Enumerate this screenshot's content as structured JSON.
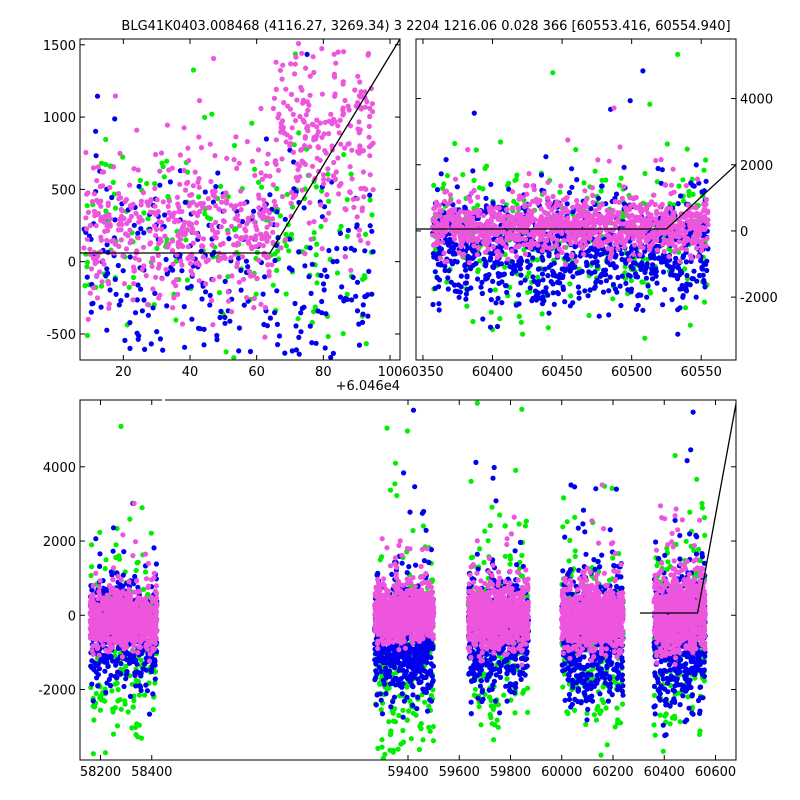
{
  "title": "BLG41K0403.008468 (4116.27, 3269.34)    3 2204 1216.06 0.028 366 [60553.416, 60554.940]",
  "colors": {
    "green": "#00ee00",
    "blue": "#0000ee",
    "pink": "#ee55dd",
    "line": "#000000"
  },
  "chart_data": [
    {
      "type": "scatter",
      "panel": "top-left",
      "x_offset_label": "+6.046e4",
      "xlim": [
        7,
        103
      ],
      "ylim": [
        -680,
        1540
      ],
      "x_ticks": [
        "20",
        "40",
        "60",
        "80",
        "100"
      ],
      "y_ticks": [
        "-500",
        "0",
        "500",
        "1000",
        "1500"
      ],
      "model_line": [
        [
          7,
          60
        ],
        [
          64,
          60
        ],
        [
          103,
          1540
        ]
      ],
      "series": [
        {
          "color": "green",
          "clusters": [
            {
              "x0": 8,
              "x1": 95,
              "mean": 180,
              "sd": 330,
              "n": 200
            }
          ]
        },
        {
          "color": "blue",
          "clusters": [
            {
              "x0": 8,
              "x1": 95,
              "mean": -150,
              "sd": 380,
              "n": 300
            }
          ]
        },
        {
          "color": "pink",
          "clusters": [
            {
              "x0": 8,
              "x1": 65,
              "mean": 200,
              "sd": 260,
              "n": 450
            },
            {
              "x0": 65,
              "x1": 95,
              "mean": 850,
              "sd": 350,
              "n": 250
            }
          ]
        }
      ]
    },
    {
      "type": "scatter",
      "panel": "top-right",
      "xlim": [
        60345,
        60575
      ],
      "ylim": [
        -3900,
        5800
      ],
      "x_ticks": [
        "60350",
        "60400",
        "60450",
        "60500",
        "60550"
      ],
      "y_ticks": [
        "-2000",
        "0",
        "2000",
        "4000"
      ],
      "model_line": [
        [
          60345,
          60
        ],
        [
          60525,
          60
        ],
        [
          60575,
          2000
        ]
      ],
      "series": [
        {
          "color": "green",
          "clusters": [
            {
              "x0": 60357,
              "x1": 60555,
              "mean": -300,
              "sd": 1100,
              "n": 350
            }
          ]
        },
        {
          "color": "blue",
          "clusters": [
            {
              "x0": 60357,
              "x1": 60555,
              "mean": -650,
              "sd": 800,
              "n": 900
            }
          ]
        },
        {
          "color": "pink",
          "clusters": [
            {
              "x0": 60357,
              "x1": 60555,
              "mean": 100,
              "sd": 400,
              "n": 1100
            }
          ]
        }
      ]
    },
    {
      "type": "scatter",
      "panel": "bottom",
      "xlim": [
        58120,
        60680
      ],
      "ylim": [
        -3900,
        5800
      ],
      "x_ticks": [
        "58200",
        "58400",
        "59400",
        "59600",
        "59800",
        "60000",
        "60200",
        "60400",
        "60600"
      ],
      "y_ticks": [
        "-2000",
        "0",
        "2000",
        "4000"
      ],
      "model_line": [
        [
          60305,
          60
        ],
        [
          60530,
          60
        ],
        [
          60680,
          5700
        ]
      ],
      "seasons": [
        [
          58160,
          58420
        ],
        [
          59270,
          59500
        ],
        [
          59635,
          59870
        ],
        [
          60000,
          60240
        ],
        [
          60360,
          60560
        ]
      ],
      "series": [
        {
          "color": "green",
          "clusters": [
            {
              "x0": 58160,
              "x1": 58420,
              "mean": -900,
              "sd": 1300,
              "n": 220
            },
            {
              "x0": 59270,
              "x1": 59500,
              "mean": -1200,
              "sd": 1200,
              "n": 260
            },
            {
              "x0": 59635,
              "x1": 59870,
              "mean": -600,
              "sd": 1200,
              "n": 220
            },
            {
              "x0": 60000,
              "x1": 60240,
              "mean": -700,
              "sd": 1300,
              "n": 220
            },
            {
              "x0": 60360,
              "x1": 60560,
              "mean": -400,
              "sd": 1300,
              "n": 200
            }
          ]
        },
        {
          "color": "blue",
          "clusters": [
            {
              "x0": 58160,
              "x1": 58420,
              "mean": -500,
              "sd": 700,
              "n": 500
            },
            {
              "x0": 59270,
              "x1": 59500,
              "mean": -800,
              "sd": 700,
              "n": 600
            },
            {
              "x0": 59635,
              "x1": 59870,
              "mean": -600,
              "sd": 800,
              "n": 500
            },
            {
              "x0": 60000,
              "x1": 60240,
              "mean": -700,
              "sd": 800,
              "n": 550
            },
            {
              "x0": 60360,
              "x1": 60560,
              "mean": -700,
              "sd": 900,
              "n": 500
            }
          ]
        },
        {
          "color": "pink",
          "clusters": [
            {
              "x0": 58160,
              "x1": 58420,
              "mean": -150,
              "sd": 350,
              "n": 900
            },
            {
              "x0": 59270,
              "x1": 59500,
              "mean": 0,
              "sd": 350,
              "n": 1000
            },
            {
              "x0": 59635,
              "x1": 59870,
              "mean": -100,
              "sd": 400,
              "n": 900
            },
            {
              "x0": 60000,
              "x1": 60240,
              "mean": -100,
              "sd": 400,
              "n": 900
            },
            {
              "x0": 60360,
              "x1": 60560,
              "mean": 0,
              "sd": 500,
              "n": 800
            }
          ]
        }
      ]
    }
  ]
}
